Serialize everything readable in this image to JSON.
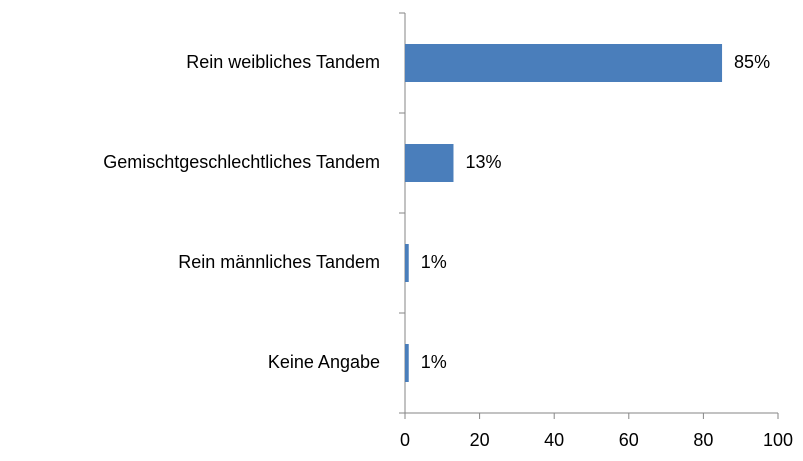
{
  "chart_data": {
    "type": "bar",
    "orientation": "horizontal",
    "categories": [
      "Rein weibliches Tandem",
      "Gemischtgeschlechtliches Tandem",
      "Rein männliches Tandem",
      "Keine Angabe"
    ],
    "values": [
      85,
      13,
      1,
      1
    ],
    "value_labels": [
      "85%",
      "13%",
      "1%",
      "1%"
    ],
    "color": "#4a7ebb",
    "xlim": [
      0,
      100
    ],
    "xticks": [
      0,
      20,
      40,
      60,
      80,
      100
    ],
    "grid": false
  }
}
